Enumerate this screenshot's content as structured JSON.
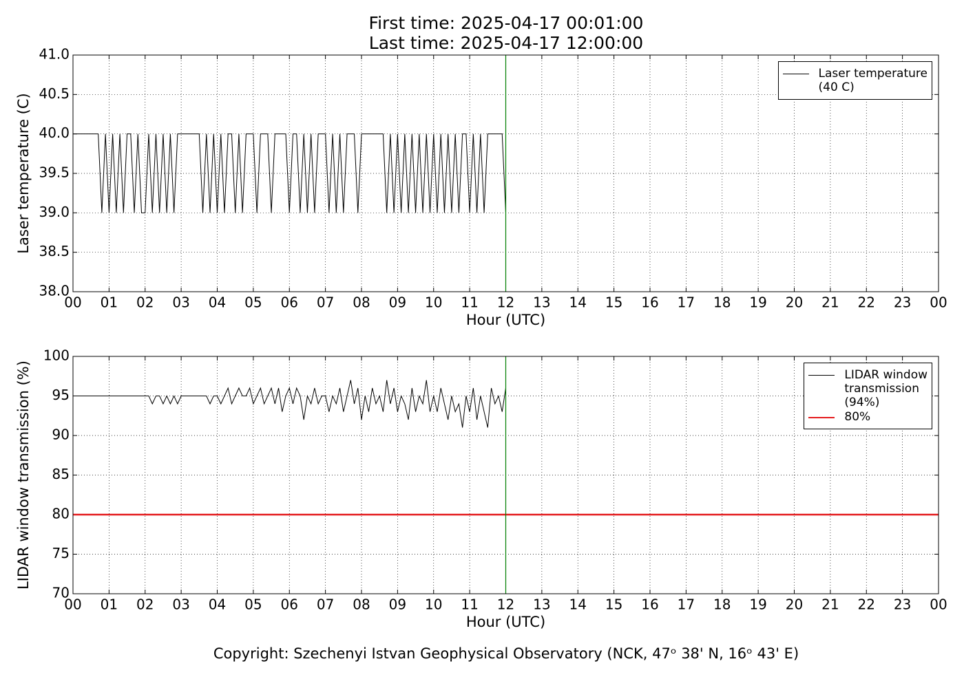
{
  "header": {
    "first": "First time: 2025-04-17 00:01:00",
    "last": "Last time: 2025-04-17 12:00:00"
  },
  "footer": "Copyright: Szechenyi Istvan Geophysical Observatory (NCK, 47ᵒ 38' N, 16ᵒ 43' E)",
  "chart_data": [
    {
      "type": "line",
      "xlabel": "Hour (UTC)",
      "ylabel": "Laser temperature (C)",
      "xlim": [
        0,
        24
      ],
      "ylim": [
        38,
        41
      ],
      "xticks": [
        {
          "value": 0,
          "label": "00"
        },
        {
          "value": 1,
          "label": "01"
        },
        {
          "value": 2,
          "label": "02"
        },
        {
          "value": 3,
          "label": "03"
        },
        {
          "value": 4,
          "label": "04"
        },
        {
          "value": 5,
          "label": "05"
        },
        {
          "value": 6,
          "label": "06"
        },
        {
          "value": 7,
          "label": "07"
        },
        {
          "value": 8,
          "label": "08"
        },
        {
          "value": 9,
          "label": "09"
        },
        {
          "value": 10,
          "label": "10"
        },
        {
          "value": 11,
          "label": "11"
        },
        {
          "value": 12,
          "label": "12"
        },
        {
          "value": 13,
          "label": "13"
        },
        {
          "value": 14,
          "label": "14"
        },
        {
          "value": 15,
          "label": "15"
        },
        {
          "value": 16,
          "label": "16"
        },
        {
          "value": 17,
          "label": "17"
        },
        {
          "value": 18,
          "label": "18"
        },
        {
          "value": 19,
          "label": "19"
        },
        {
          "value": 20,
          "label": "20"
        },
        {
          "value": 21,
          "label": "21"
        },
        {
          "value": 22,
          "label": "22"
        },
        {
          "value": 23,
          "label": "23"
        },
        {
          "value": 24,
          "label": "00"
        }
      ],
      "yticks": [
        {
          "value": 38,
          "label": "38.0"
        },
        38.5,
        {
          "value": 39,
          "label": "39.0"
        },
        39.5,
        {
          "value": 40,
          "label": "40.0"
        },
        40.5,
        {
          "value": 41,
          "label": "41.0"
        }
      ],
      "grid": true,
      "legend": "upper right",
      "vline": 12,
      "vline_color": "#007f00",
      "x": [
        0,
        0.1,
        0.2,
        0.3,
        0.4,
        0.5,
        0.6,
        0.7,
        0.8,
        0.9,
        1,
        1.1,
        1.2,
        1.3,
        1.4,
        1.5,
        1.6,
        1.7,
        1.8,
        1.9,
        2,
        2.1,
        2.2,
        2.3,
        2.4,
        2.5,
        2.6,
        2.7,
        2.8,
        2.9,
        3,
        3.1,
        3.2,
        3.3,
        3.4,
        3.5,
        3.6,
        3.7,
        3.8,
        3.9,
        4,
        4.1,
        4.2,
        4.3,
        4.4,
        4.5,
        4.6,
        4.7,
        4.8,
        4.9,
        5,
        5.1,
        5.2,
        5.3,
        5.4,
        5.5,
        5.6,
        5.7,
        5.8,
        5.9,
        6,
        6.1,
        6.2,
        6.3,
        6.4,
        6.5,
        6.6,
        6.7,
        6.8,
        6.9,
        7,
        7.1,
        7.2,
        7.3,
        7.4,
        7.5,
        7.6,
        7.7,
        7.8,
        7.9,
        8,
        8.1,
        8.2,
        8.3,
        8.4,
        8.5,
        8.6,
        8.7,
        8.8,
        8.9,
        9,
        9.1,
        9.2,
        9.3,
        9.4,
        9.5,
        9.6,
        9.7,
        9.8,
        9.9,
        10,
        10.1,
        10.2,
        10.3,
        10.4,
        10.5,
        10.6,
        10.7,
        10.8,
        10.9,
        11,
        11.1,
        11.2,
        11.3,
        11.4,
        11.5,
        11.6,
        11.7,
        11.8,
        11.9,
        12
      ],
      "series": [
        {
          "name": "Laser temperature\n(40 C)",
          "color": "#000000",
          "linewidth": 1,
          "values": [
            40,
            40,
            40,
            40,
            40,
            40,
            40,
            40,
            39,
            40,
            39,
            40,
            39,
            40,
            39,
            40,
            40,
            39,
            40,
            39,
            39,
            40,
            39,
            40,
            39,
            40,
            39,
            40,
            39,
            40,
            40,
            40,
            40,
            40,
            40,
            40,
            39,
            40,
            39,
            40,
            39,
            40,
            39,
            40,
            40,
            39,
            40,
            39,
            40,
            40,
            40,
            39,
            40,
            40,
            40,
            39,
            40,
            40,
            40,
            40,
            39,
            40,
            40,
            39,
            40,
            39,
            40,
            39,
            40,
            40,
            40,
            39,
            40,
            39,
            40,
            39,
            40,
            40,
            40,
            39,
            40,
            40,
            40,
            40,
            40,
            40,
            40,
            39,
            40,
            39,
            40,
            39,
            40,
            39,
            40,
            39,
            40,
            39,
            40,
            39,
            40,
            39,
            40,
            39,
            40,
            39,
            40,
            39,
            40,
            40,
            39,
            40,
            39,
            40,
            39,
            40,
            40,
            40,
            40,
            40,
            39
          ]
        }
      ]
    },
    {
      "type": "line",
      "xlabel": "Hour (UTC)",
      "ylabel": "LIDAR window transmission (%)",
      "xlim": [
        0,
        24
      ],
      "ylim": [
        70,
        100
      ],
      "xticks": [
        {
          "value": 0,
          "label": "00"
        },
        {
          "value": 1,
          "label": "01"
        },
        {
          "value": 2,
          "label": "02"
        },
        {
          "value": 3,
          "label": "03"
        },
        {
          "value": 4,
          "label": "04"
        },
        {
          "value": 5,
          "label": "05"
        },
        {
          "value": 6,
          "label": "06"
        },
        {
          "value": 7,
          "label": "07"
        },
        {
          "value": 8,
          "label": "08"
        },
        {
          "value": 9,
          "label": "09"
        },
        {
          "value": 10,
          "label": "10"
        },
        {
          "value": 11,
          "label": "11"
        },
        {
          "value": 12,
          "label": "12"
        },
        {
          "value": 13,
          "label": "13"
        },
        {
          "value": 14,
          "label": "14"
        },
        {
          "value": 15,
          "label": "15"
        },
        {
          "value": 16,
          "label": "16"
        },
        {
          "value": 17,
          "label": "17"
        },
        {
          "value": 18,
          "label": "18"
        },
        {
          "value": 19,
          "label": "19"
        },
        {
          "value": 20,
          "label": "20"
        },
        {
          "value": 21,
          "label": "21"
        },
        {
          "value": 22,
          "label": "22"
        },
        {
          "value": 23,
          "label": "23"
        },
        {
          "value": 24,
          "label": "00"
        }
      ],
      "yticks": [
        70,
        75,
        80,
        85,
        90,
        95,
        100
      ],
      "grid": true,
      "legend": "upper right",
      "vline": 12,
      "vline_color": "#007f00",
      "x": [
        0,
        0.1,
        0.2,
        0.3,
        0.4,
        0.5,
        0.6,
        0.7,
        0.8,
        0.9,
        1,
        1.1,
        1.2,
        1.3,
        1.4,
        1.5,
        1.6,
        1.7,
        1.8,
        1.9,
        2,
        2.1,
        2.2,
        2.3,
        2.4,
        2.5,
        2.6,
        2.7,
        2.8,
        2.9,
        3,
        3.1,
        3.2,
        3.3,
        3.4,
        3.5,
        3.6,
        3.7,
        3.8,
        3.9,
        4,
        4.1,
        4.2,
        4.3,
        4.4,
        4.5,
        4.6,
        4.7,
        4.8,
        4.9,
        5,
        5.1,
        5.2,
        5.3,
        5.4,
        5.5,
        5.6,
        5.7,
        5.8,
        5.9,
        6,
        6.1,
        6.2,
        6.3,
        6.4,
        6.5,
        6.6,
        6.7,
        6.8,
        6.9,
        7,
        7.1,
        7.2,
        7.3,
        7.4,
        7.5,
        7.6,
        7.7,
        7.8,
        7.9,
        8,
        8.1,
        8.2,
        8.3,
        8.4,
        8.5,
        8.6,
        8.7,
        8.8,
        8.9,
        9,
        9.1,
        9.2,
        9.3,
        9.4,
        9.5,
        9.6,
        9.7,
        9.8,
        9.9,
        10,
        10.1,
        10.2,
        10.3,
        10.4,
        10.5,
        10.6,
        10.7,
        10.8,
        10.9,
        11,
        11.1,
        11.2,
        11.3,
        11.4,
        11.5,
        11.6,
        11.7,
        11.8,
        11.9,
        12
      ],
      "series": [
        {
          "name": "LIDAR window\ntransmission\n(94%)",
          "color": "#000000",
          "linewidth": 1,
          "values": [
            95,
            95,
            95,
            95,
            95,
            95,
            95,
            95,
            95,
            95,
            95,
            95,
            95,
            95,
            95,
            95,
            95,
            95,
            95,
            95,
            95,
            95,
            94,
            95,
            95,
            94,
            95,
            94,
            95,
            94,
            95,
            95,
            95,
            95,
            95,
            95,
            95,
            95,
            94,
            95,
            95,
            94,
            95,
            96,
            94,
            95,
            96,
            95,
            95,
            96,
            94,
            95,
            96,
            94,
            95,
            96,
            94,
            96,
            93,
            95,
            96,
            94,
            96,
            95,
            92,
            95,
            94,
            96,
            94,
            95,
            95,
            93,
            95,
            94,
            96,
            93,
            95,
            97,
            94,
            96,
            92,
            95,
            93,
            96,
            94,
            95,
            93,
            97,
            94,
            96,
            93,
            95,
            94,
            92,
            96,
            93,
            95,
            94,
            97,
            93,
            95,
            93,
            96,
            94,
            92,
            95,
            93,
            94,
            91,
            95,
            93,
            96,
            92,
            95,
            93,
            91,
            96,
            94,
            95,
            93,
            96
          ]
        },
        {
          "name": "80%",
          "color": "#e41a1c",
          "linewidth": 2.5,
          "x": [
            0,
            24
          ],
          "values": [
            80,
            80
          ]
        }
      ]
    }
  ]
}
